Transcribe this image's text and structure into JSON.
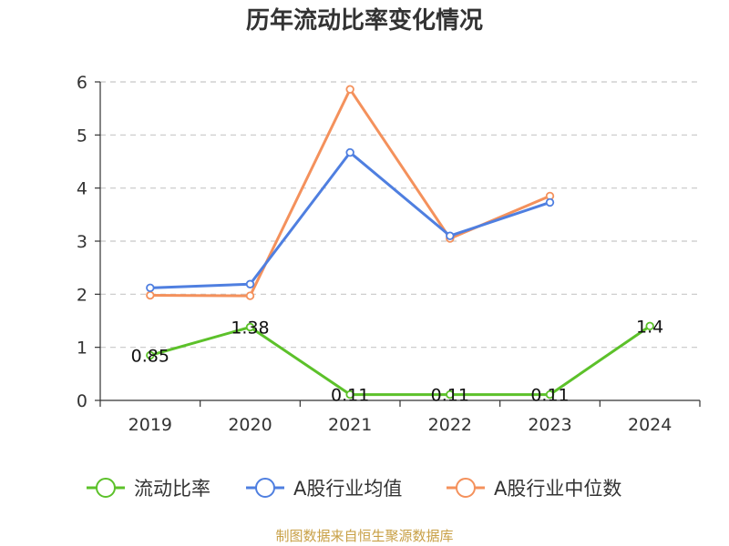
{
  "title": "历年流动比率变化情况",
  "footer": "制图数据来自恒生聚源数据库",
  "chart_data": {
    "type": "line",
    "categories": [
      "2019",
      "2020",
      "2021",
      "2022",
      "2023",
      "2024"
    ],
    "ylim": [
      0,
      6
    ],
    "yticks": [
      "0",
      "1",
      "2",
      "3",
      "4",
      "5",
      "6"
    ],
    "grid": true,
    "legend_position": "bottom",
    "series": [
      {
        "name": "流动比率",
        "color": "#5cc12a",
        "values": [
          0.85,
          1.38,
          0.11,
          0.11,
          0.11,
          1.4
        ],
        "labels": [
          "0.85",
          "1.38",
          "0.11",
          "0.11",
          "0.11",
          "1.4"
        ]
      },
      {
        "name": "A股行业均值",
        "color": "#4f7fe0",
        "values": [
          2.12,
          2.19,
          4.67,
          3.1,
          3.73,
          null
        ]
      },
      {
        "name": "A股行业中位数",
        "color": "#f4915c",
        "values": [
          1.98,
          1.97,
          5.86,
          3.05,
          3.85,
          null
        ]
      }
    ]
  }
}
